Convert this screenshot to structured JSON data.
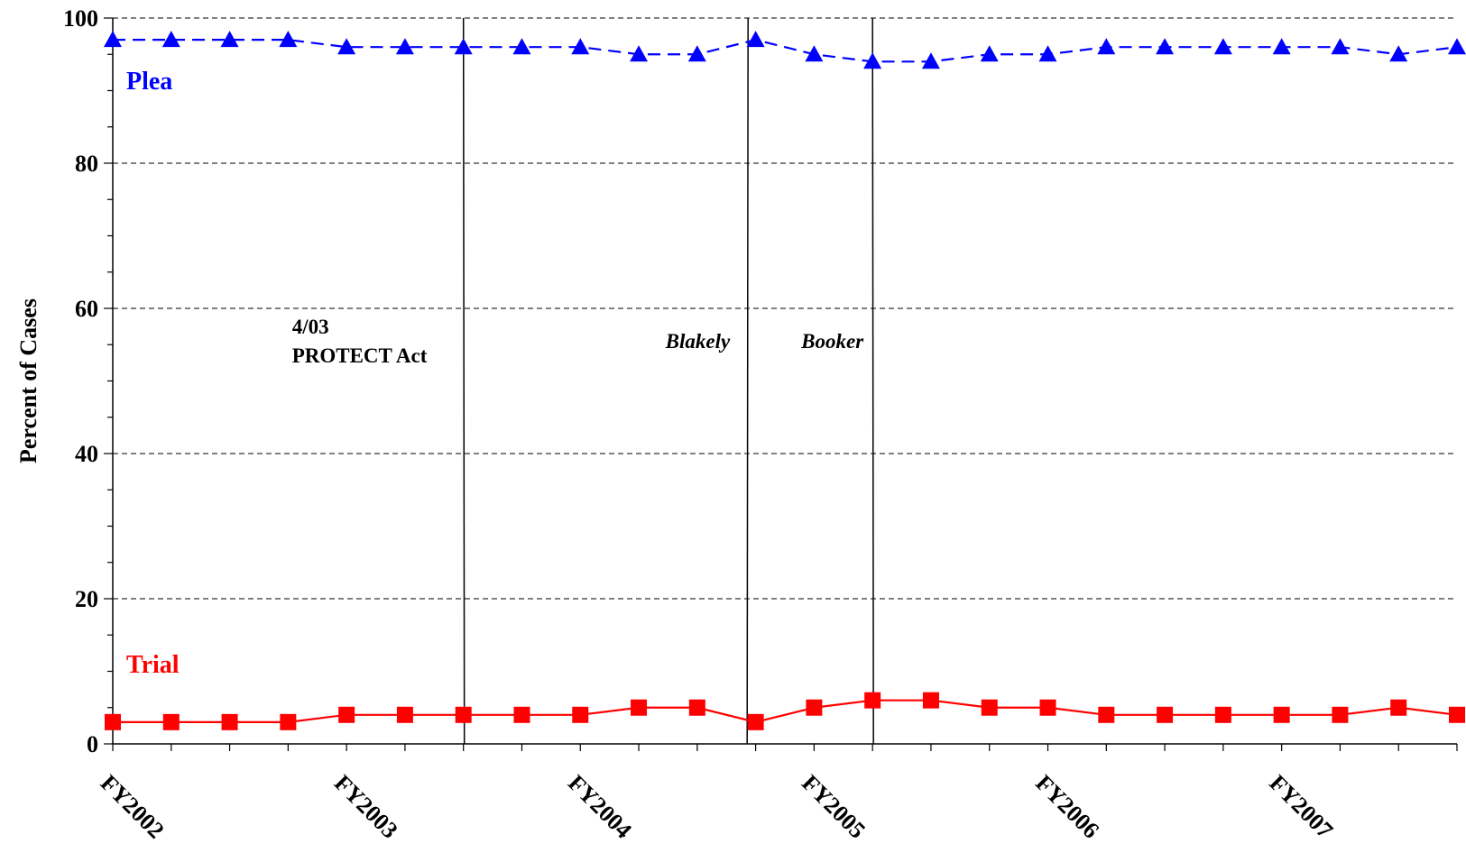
{
  "chart_data": {
    "type": "line",
    "ylabel": "Percent of Cases",
    "ylim": [
      0,
      100
    ],
    "yticks": [
      0,
      20,
      40,
      60,
      80,
      100
    ],
    "y_minor_step": 5,
    "grid": "horizontal dashed at major ticks",
    "x_count": 24,
    "x_labels": [
      {
        "index": 0,
        "label": "FY2002"
      },
      {
        "index": 4,
        "label": "FY2003"
      },
      {
        "index": 8,
        "label": "FY2004"
      },
      {
        "index": 12,
        "label": "FY2005"
      },
      {
        "index": 16,
        "label": "FY2006"
      },
      {
        "index": 20,
        "label": "FY2007"
      }
    ],
    "series": [
      {
        "name": "Plea",
        "color": "#0000ff",
        "line_style": "dashed",
        "marker": "triangle",
        "values": [
          97,
          97,
          97,
          97,
          96,
          96,
          96,
          96,
          96,
          95,
          95,
          97,
          95,
          94,
          94,
          95,
          95,
          96,
          96,
          96,
          96,
          96,
          95,
          96
        ]
      },
      {
        "name": "Trial",
        "color": "#ff0000",
        "line_style": "solid",
        "marker": "square",
        "values": [
          3,
          3,
          3,
          3,
          4,
          4,
          4,
          4,
          4,
          5,
          5,
          3,
          5,
          6,
          6,
          5,
          5,
          4,
          4,
          4,
          4,
          4,
          5,
          4
        ]
      }
    ],
    "event_lines": [
      {
        "x": 6,
        "label_lines": [
          "4/03",
          "PROTECT Act"
        ],
        "italic": false
      },
      {
        "x": 10.87,
        "label_lines": [
          "Blakely"
        ],
        "italic": true
      },
      {
        "x": 13,
        "label_lines": [
          "Booker"
        ],
        "italic": true
      }
    ]
  }
}
